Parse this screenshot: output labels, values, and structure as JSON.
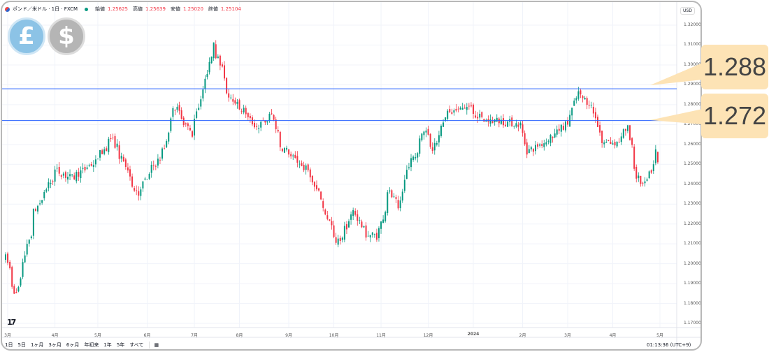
{
  "header": {
    "symbol": "ポンド／米ドル · 1日 · FXCM",
    "open_label": "始値",
    "open": "1.25625",
    "high_label": "高値",
    "high": "1.25639",
    "low_label": "安値",
    "low": "1.25020",
    "close_label": "終値",
    "close": "1.25104"
  },
  "currency": "USD",
  "callouts": [
    "1.288",
    "1.272"
  ],
  "toolbar": {
    "ranges": [
      "1日",
      "5日",
      "1ヶ月",
      "3ヶ月",
      "6ヶ月",
      "年初来",
      "1年",
      "5年",
      "すべて"
    ]
  },
  "clock": "01:13:36 (UTC+9)",
  "logo": "TV",
  "coins": {
    "left": "£",
    "right": "$"
  },
  "colors": {
    "up": "#089981",
    "down": "#f23645",
    "hline": "#2962ff",
    "callout": "#fde3b5"
  },
  "chart_data": {
    "type": "candlestick",
    "yticks": [
      "1.32000",
      "1.31000",
      "1.30000",
      "1.29000",
      "1.28000",
      "1.27000",
      "1.26000",
      "1.25000",
      "1.24000",
      "1.23000",
      "1.22000",
      "1.21000",
      "1.20000",
      "1.19000",
      "1.18000",
      "1.17000"
    ],
    "ylim": [
      1.17,
      1.32
    ],
    "xticks": [
      {
        "label": "3月",
        "date": "2023-03-01"
      },
      {
        "label": "4月",
        "date": "2023-04-03"
      },
      {
        "label": "5月",
        "date": "2023-05-01"
      },
      {
        "label": "6月",
        "date": "2023-06-01"
      },
      {
        "label": "7月",
        "date": "2023-07-03"
      },
      {
        "label": "8月",
        "date": "2023-08-01"
      },
      {
        "label": "9月",
        "date": "2023-09-01"
      },
      {
        "label": "10月",
        "date": "2023-10-02"
      },
      {
        "label": "11月",
        "date": "2023-11-01"
      },
      {
        "label": "12月",
        "date": "2023-12-01"
      },
      {
        "label": "2024",
        "date": "2024-01-01"
      },
      {
        "label": "2月",
        "date": "2024-02-01"
      },
      {
        "label": "3月",
        "date": "2024-03-01"
      },
      {
        "label": "4月",
        "date": "2024-04-01"
      },
      {
        "label": "5月",
        "date": "2024-05-01"
      }
    ],
    "horizontal_lines": [
      1.288,
      1.272
    ],
    "close_path": [
      [
        "2023-03-01",
        1.203
      ],
      [
        "2023-03-08",
        1.184
      ],
      [
        "2023-03-16",
        1.212
      ],
      [
        "2023-03-20",
        1.226
      ],
      [
        "2023-04-03",
        1.247
      ],
      [
        "2023-04-13",
        1.243
      ],
      [
        "2023-04-28",
        1.251
      ],
      [
        "2023-05-09",
        1.263
      ],
      [
        "2023-05-14",
        1.256
      ],
      [
        "2023-05-26",
        1.235
      ],
      [
        "2023-06-04",
        1.247
      ],
      [
        "2023-06-13",
        1.258
      ],
      [
        "2023-06-18",
        1.281
      ],
      [
        "2023-06-27",
        1.27
      ],
      [
        "2023-06-30",
        1.265
      ],
      [
        "2023-07-07",
        1.286
      ],
      [
        "2023-07-12",
        1.3
      ],
      [
        "2023-07-14",
        1.312
      ],
      [
        "2023-07-18",
        1.303
      ],
      [
        "2023-07-24",
        1.286
      ],
      [
        "2023-08-03",
        1.277
      ],
      [
        "2023-08-12",
        1.268
      ],
      [
        "2023-08-22",
        1.275
      ],
      [
        "2023-08-27",
        1.26
      ],
      [
        "2023-09-05",
        1.253
      ],
      [
        "2023-09-14",
        1.247
      ],
      [
        "2023-09-24",
        1.23
      ],
      [
        "2023-10-03",
        1.21
      ],
      [
        "2023-10-10",
        1.219
      ],
      [
        "2023-10-14",
        1.229
      ],
      [
        "2023-10-21",
        1.215
      ],
      [
        "2023-10-30",
        1.214
      ],
      [
        "2023-11-06",
        1.237
      ],
      [
        "2023-11-13",
        1.226
      ],
      [
        "2023-11-17",
        1.247
      ],
      [
        "2023-11-23",
        1.254
      ],
      [
        "2023-11-29",
        1.268
      ],
      [
        "2023-12-05",
        1.258
      ],
      [
        "2023-12-13",
        1.275
      ],
      [
        "2023-12-28",
        1.279
      ],
      [
        "2024-01-06",
        1.272
      ],
      [
        "2024-01-16",
        1.272
      ],
      [
        "2024-01-31",
        1.27
      ],
      [
        "2024-02-03",
        1.256
      ],
      [
        "2024-02-13",
        1.26
      ],
      [
        "2024-02-22",
        1.265
      ],
      [
        "2024-03-03",
        1.272
      ],
      [
        "2024-03-08",
        1.286
      ],
      [
        "2024-03-18",
        1.279
      ],
      [
        "2024-03-24",
        1.261
      ],
      [
        "2024-04-03",
        1.261
      ],
      [
        "2024-04-10",
        1.268
      ],
      [
        "2024-04-16",
        1.244
      ],
      [
        "2024-04-21",
        1.237
      ],
      [
        "2024-04-25",
        1.247
      ],
      [
        "2024-04-29",
        1.25625
      ]
    ],
    "last_candle": {
      "open": 1.25625,
      "high": 1.25639,
      "low": 1.2502,
      "close": 1.25104
    }
  }
}
